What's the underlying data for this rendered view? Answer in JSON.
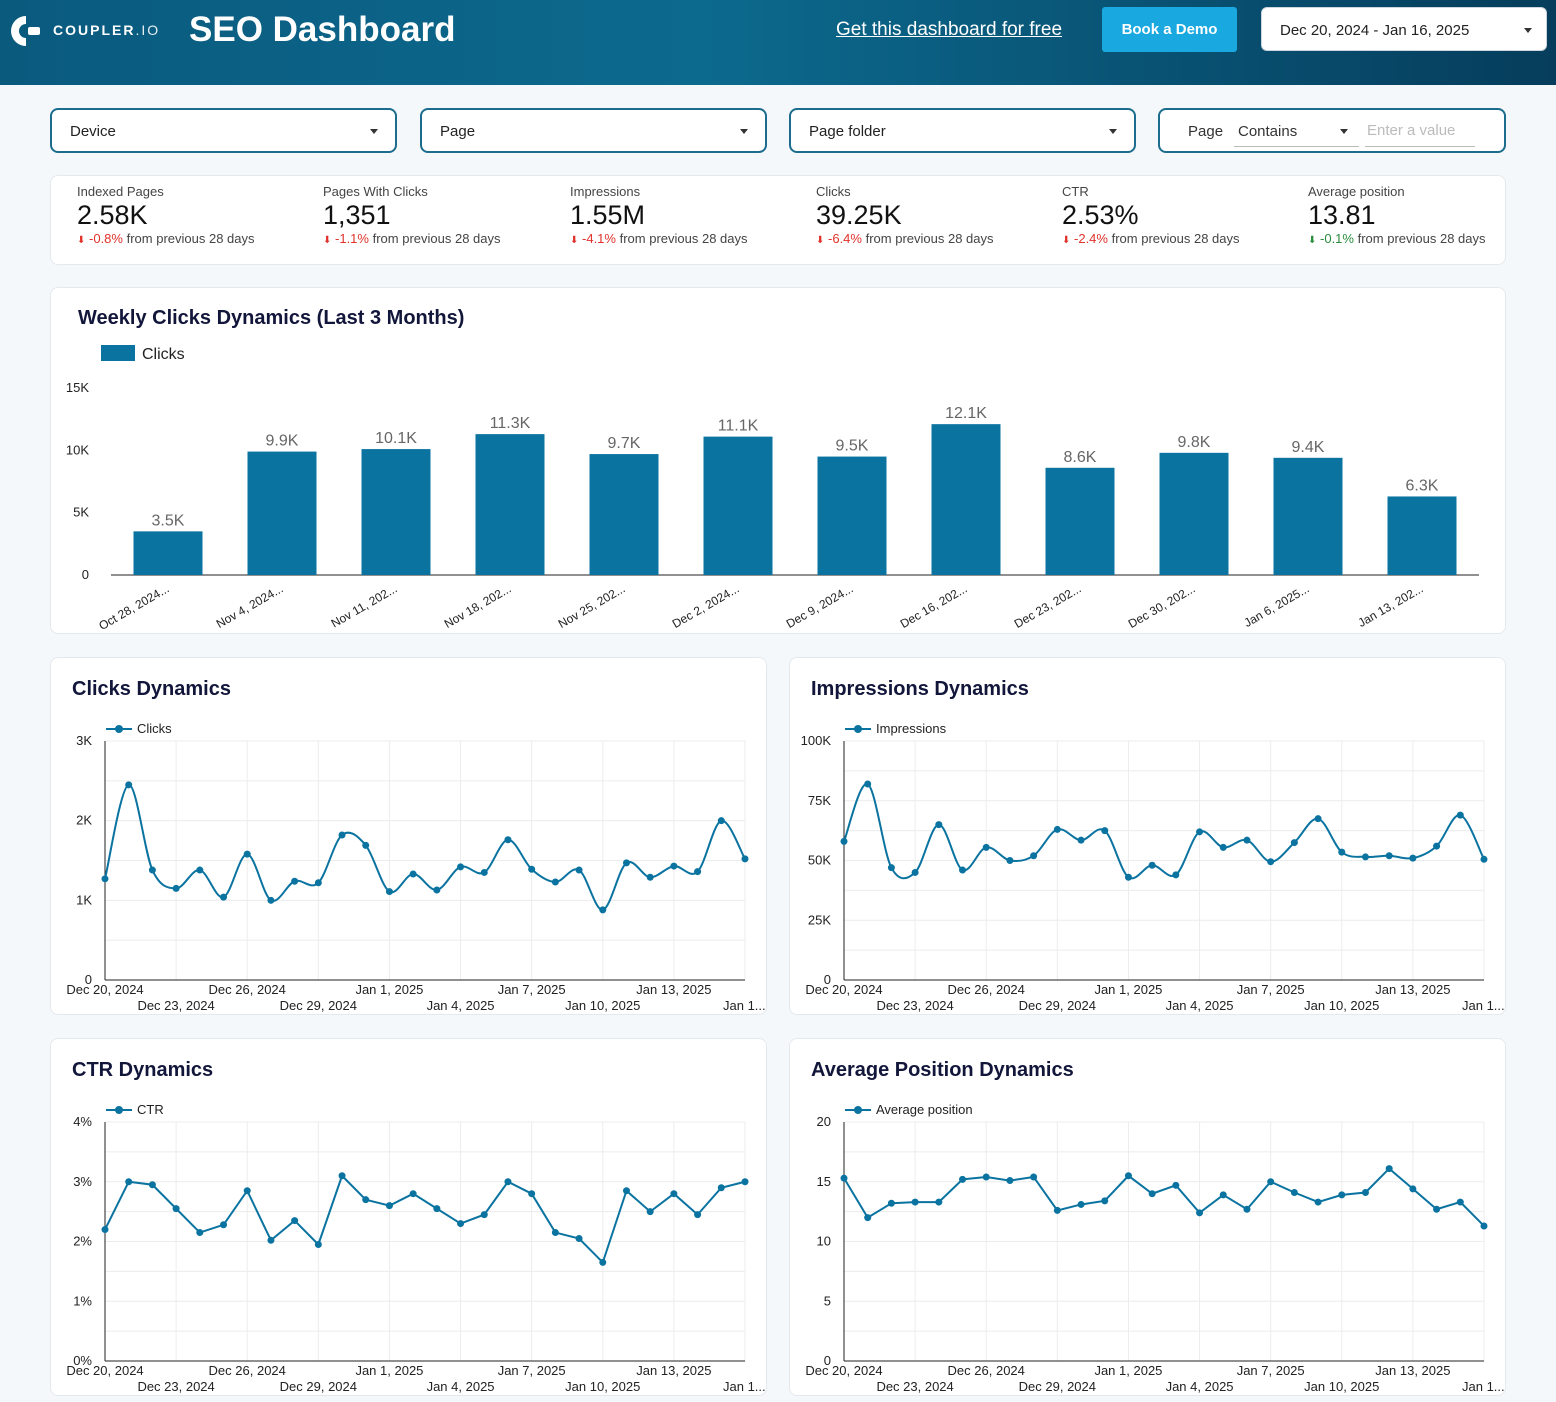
{
  "header": {
    "logo_text": "COUPLER",
    "logo_suffix": ".IO",
    "title": "SEO Dashboard",
    "free_link": "Get this dashboard for free",
    "demo_button": "Book a Demo",
    "date_range": "Dec 20, 2024 - Jan 16, 2025"
  },
  "filters": {
    "device": "Device",
    "page": "Page",
    "page_folder": "Page folder",
    "page_filter_label": "Page",
    "page_filter_operator": "Contains",
    "page_filter_placeholder": "Enter a value"
  },
  "kpis": [
    {
      "label": "Indexed Pages",
      "value": "2.58K",
      "delta": "-0.8%",
      "suffix": "from previous 28 days",
      "direction": "down"
    },
    {
      "label": "Pages With Clicks",
      "value": "1,351",
      "delta": "-1.1%",
      "suffix": "from previous 28 days",
      "direction": "down"
    },
    {
      "label": "Impressions",
      "value": "1.55M",
      "delta": "-4.1%",
      "suffix": "from previous 28 days",
      "direction": "down"
    },
    {
      "label": "Clicks",
      "value": "39.25K",
      "delta": "-6.4%",
      "suffix": "from previous 28 days",
      "direction": "down"
    },
    {
      "label": "CTR",
      "value": "2.53%",
      "delta": "-2.4%",
      "suffix": "from previous 28 days",
      "direction": "down"
    },
    {
      "label": "Average position",
      "value": "13.81",
      "delta": "-0.1%",
      "suffix": "from previous 28 days",
      "direction": "down-good"
    }
  ],
  "titles": {
    "weekly": "Weekly Clicks Dynamics (Last 3 Months)",
    "clicks": "Clicks Dynamics",
    "impressions": "Impressions Dynamics",
    "ctr": "CTR Dynamics",
    "position": "Average Position Dynamics"
  },
  "colors": {
    "primary": "#0a73a0",
    "negative": "#e0322b",
    "positive": "#2a8c3c"
  },
  "chart_data": [
    {
      "id": "weekly",
      "type": "bar",
      "title": "Weekly Clicks Dynamics (Last 3 Months)",
      "legend": "Clicks",
      "categories": [
        "Oct 28, 2024...",
        "Nov 4, 2024...",
        "Nov 11, 202...",
        "Nov 18, 202...",
        "Nov 25, 202...",
        "Dec 2, 2024...",
        "Dec 9, 2024...",
        "Dec 16, 202...",
        "Dec 23, 202...",
        "Dec 30, 202...",
        "Jan 6, 2025...",
        "Jan 13, 202..."
      ],
      "values": [
        3500,
        9900,
        10100,
        11300,
        9700,
        11100,
        9500,
        12100,
        8600,
        9800,
        9400,
        6300
      ],
      "labels": [
        "3.5K",
        "9.9K",
        "10.1K",
        "11.3K",
        "9.7K",
        "11.1K",
        "9.5K",
        "12.1K",
        "8.6K",
        "9.8K",
        "9.4K",
        "6.3K"
      ],
      "yticks": [
        "0",
        "5K",
        "10K",
        "15K"
      ],
      "ylim": [
        0,
        15000
      ]
    },
    {
      "id": "clicks",
      "type": "line",
      "title": "Clicks Dynamics",
      "legend": "Clicks",
      "values": [
        1270,
        2450,
        1380,
        1150,
        1380,
        1040,
        1580,
        1000,
        1240,
        1220,
        1820,
        1690,
        1110,
        1330,
        1130,
        1420,
        1350,
        1760,
        1390,
        1230,
        1380,
        880,
        1470,
        1290,
        1430,
        1360,
        2000,
        1520
      ],
      "ylim": [
        0,
        3000
      ],
      "yticks": [
        "0",
        "1K",
        "2K",
        "3K"
      ],
      "xticks_top": [
        "Dec 20, 2024",
        "Dec 26, 2024",
        "Jan 1, 2025",
        "Jan 7, 2025",
        "Jan 13, 2025"
      ],
      "xticks_bottom": [
        "Dec 23, 2024",
        "Dec 29, 2024",
        "Jan 4, 2025",
        "Jan 10, 2025",
        "Jan 1..."
      ]
    },
    {
      "id": "impressions",
      "type": "line",
      "title": "Impressions Dynamics",
      "legend": "Impressions",
      "values": [
        58000,
        82000,
        47000,
        45000,
        65000,
        46000,
        55500,
        50000,
        52000,
        63000,
        58500,
        62500,
        43000,
        48000,
        44000,
        62000,
        55500,
        58500,
        49500,
        57500,
        67500,
        53500,
        51500,
        52000,
        51000,
        56000,
        69000,
        50500
      ],
      "ylim": [
        0,
        100000
      ],
      "yticks": [
        "0",
        "25K",
        "50K",
        "75K",
        "100K"
      ],
      "xticks_top": [
        "Dec 20, 2024",
        "Dec 26, 2024",
        "Jan 1, 2025",
        "Jan 7, 2025",
        "Jan 13, 2025"
      ],
      "xticks_bottom": [
        "Dec 23, 2024",
        "Dec 29, 2024",
        "Jan 4, 2025",
        "Jan 10, 2025",
        "Jan 1..."
      ]
    },
    {
      "id": "ctr",
      "type": "line",
      "title": "CTR Dynamics",
      "legend": "CTR",
      "values": [
        2.2,
        3.0,
        2.95,
        2.55,
        2.15,
        2.28,
        2.85,
        2.02,
        2.35,
        1.95,
        3.1,
        2.7,
        2.6,
        2.8,
        2.55,
        2.3,
        2.45,
        3.0,
        2.8,
        2.15,
        2.05,
        1.65,
        2.85,
        2.5,
        2.8,
        2.45,
        2.9,
        3.0
      ],
      "ylim": [
        0,
        4
      ],
      "yticks": [
        "0%",
        "1%",
        "2%",
        "3%",
        "4%"
      ],
      "xticks_top": [
        "Dec 20, 2024",
        "Dec 26, 2024",
        "Jan 1, 2025",
        "Jan 7, 2025",
        "Jan 13, 2025"
      ],
      "xticks_bottom": [
        "Dec 23, 2024",
        "Dec 29, 2024",
        "Jan 4, 2025",
        "Jan 10, 2025",
        "Jan 1..."
      ]
    },
    {
      "id": "position",
      "type": "line",
      "title": "Average Position Dynamics",
      "legend": "Average position",
      "values": [
        15.3,
        12.0,
        13.2,
        13.3,
        13.3,
        15.2,
        15.4,
        15.1,
        15.4,
        12.6,
        13.1,
        13.4,
        15.5,
        14.0,
        14.7,
        12.4,
        13.9,
        12.7,
        15.0,
        14.1,
        13.3,
        13.9,
        14.1,
        16.1,
        14.4,
        12.7,
        13.3,
        11.3
      ],
      "ylim": [
        0,
        20
      ],
      "yticks": [
        "0",
        "5",
        "10",
        "15",
        "20"
      ],
      "xticks_top": [
        "Dec 20, 2024",
        "Dec 26, 2024",
        "Jan 1, 2025",
        "Jan 7, 2025",
        "Jan 13, 2025"
      ],
      "xticks_bottom": [
        "Dec 23, 2024",
        "Dec 29, 2024",
        "Jan 4, 2025",
        "Jan 10, 2025",
        "Jan 1..."
      ]
    }
  ]
}
